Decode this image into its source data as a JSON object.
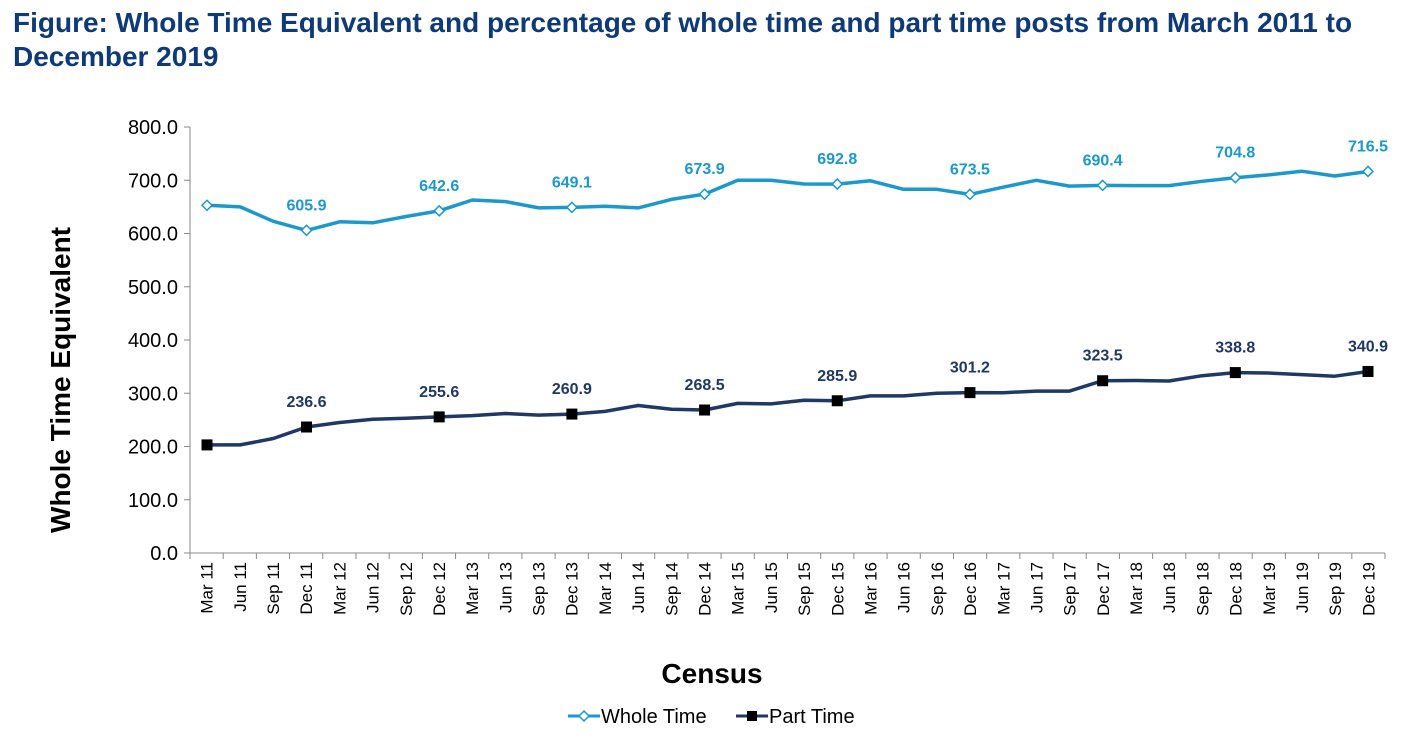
{
  "chart_data": {
    "type": "line",
    "title": "Figure: Whole Time Equivalent and percentage of whole time and part time posts from March 2011 to December 2019",
    "xlabel": "Census",
    "ylabel": "Whole Time Equivalent",
    "ylim": [
      0,
      800
    ],
    "yticks": [
      "0.0",
      "100.0",
      "200.0",
      "300.0",
      "400.0",
      "500.0",
      "600.0",
      "700.0",
      "800.0"
    ],
    "legend_position": "bottom",
    "categories": [
      "Mar 11",
      "Jun 11",
      "Sep 11",
      "Dec 11",
      "Mar 12",
      "Jun 12",
      "Sep 12",
      "Dec 12",
      "Mar 13",
      "Jun 13",
      "Sep 13",
      "Dec 13",
      "Mar 14",
      "Jun 14",
      "Sep 14",
      "Dec 14",
      "Mar 15",
      "Jun 15",
      "Sep 15",
      "Dec 15",
      "Mar 16",
      "Jun 16",
      "Sep 16",
      "Dec 16",
      "Mar 17",
      "Jun 17",
      "Sep 17",
      "Dec 17",
      "Mar 18",
      "Jun 18",
      "Sep 18",
      "Dec 18",
      "Mar 19",
      "Jun 19",
      "Sep 19",
      "Dec 19"
    ],
    "series": [
      {
        "name": "Whole Time",
        "color": "#1b98cc",
        "marker": "diamond",
        "values": [
          653,
          650,
          623,
          605.9,
          622,
          620,
          632,
          642.6,
          663,
          660,
          648,
          649.1,
          651,
          648,
          664,
          673.9,
          700,
          700,
          693,
          692.8,
          699,
          683,
          683,
          673.5,
          687,
          700,
          689,
          690.4,
          690,
          690,
          698,
          704.8,
          710,
          717,
          708,
          716.5
        ],
        "labels": {
          "3": "605.9",
          "7": "642.6",
          "11": "649.1",
          "15": "673.9",
          "19": "692.8",
          "23": "673.5",
          "27": "690.4",
          "31": "704.8",
          "35": "716.5"
        }
      },
      {
        "name": "Part Time",
        "color": "#1f3864",
        "marker": "square",
        "values": [
          203,
          203,
          215,
          236.6,
          245,
          251,
          253,
          255.6,
          258,
          262,
          259,
          260.9,
          266,
          277,
          270,
          268.5,
          281,
          280,
          287,
          285.9,
          295,
          295,
          300,
          301.2,
          301,
          304,
          304,
          323.5,
          324,
          323,
          333,
          338.8,
          338,
          335,
          332,
          340.9
        ],
        "labels": {
          "3": "236.6",
          "7": "255.6",
          "11": "260.9",
          "15": "268.5",
          "19": "285.9",
          "23": "301.2",
          "27": "323.5",
          "31": "338.8",
          "35": "340.9"
        }
      }
    ]
  }
}
